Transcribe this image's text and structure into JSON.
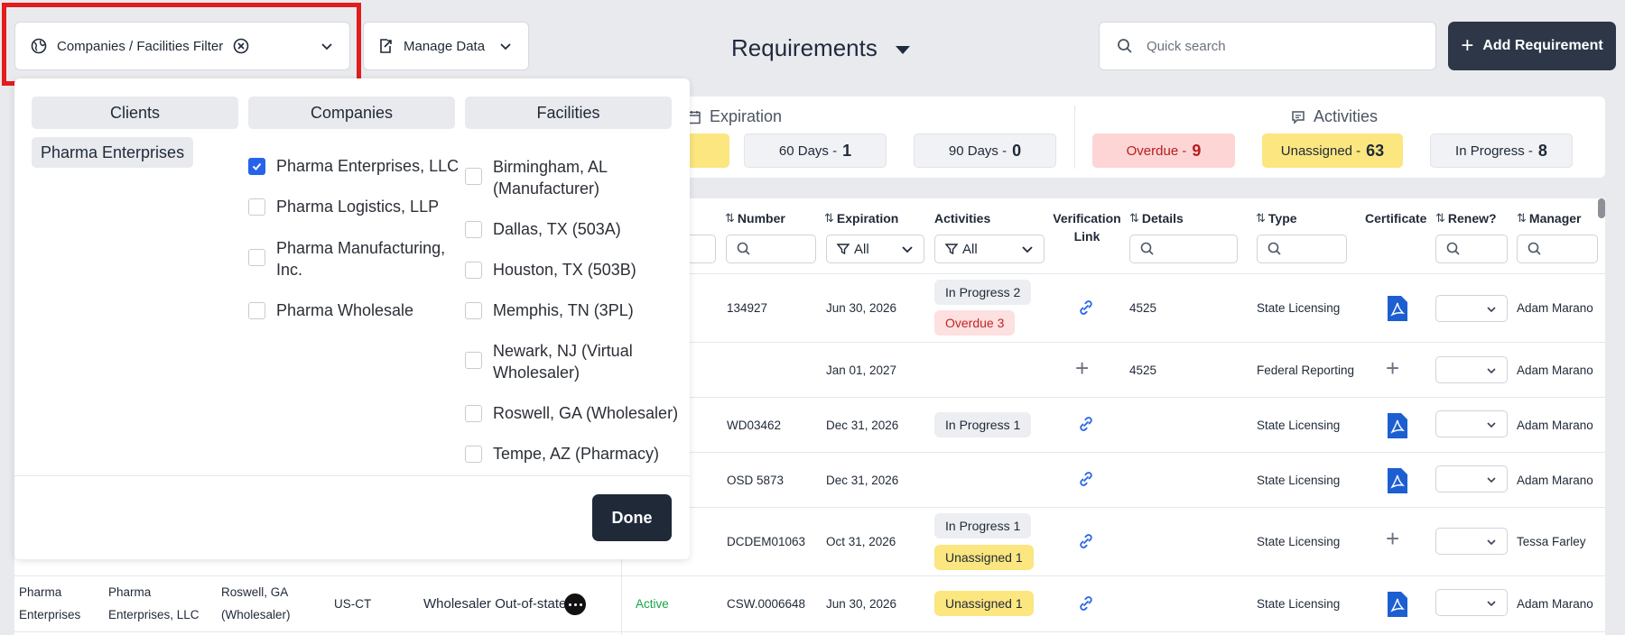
{
  "toolbar": {
    "filter_label": "Companies / Facilities Filter",
    "manage_label": "Manage Data",
    "title": "Requirements",
    "search_placeholder": "Quick search",
    "add_label": "Add Requirement"
  },
  "summary": {
    "expiration_title": "Expiration",
    "activities_title": "Activities",
    "chips": [
      {
        "label": "60 Days -",
        "count": "1"
      },
      {
        "label": "90 Days -",
        "count": "0"
      },
      {
        "label": "Overdue -",
        "count": "9"
      },
      {
        "label": "Unassigned -",
        "count": "63"
      },
      {
        "label": "In Progress -",
        "count": "8"
      }
    ]
  },
  "table": {
    "headers": {
      "number": "Number",
      "expiration": "Expiration",
      "activities": "Activities",
      "verification": "Verification",
      "verification2": "Link",
      "details": "Details",
      "type": "Type",
      "certificate": "Certificate",
      "renew": "Renew?",
      "manager": "Manager"
    },
    "filter_all": "All",
    "rows": [
      {
        "number": "134927",
        "expiration": "Jun 30, 2026",
        "details": "4525",
        "type": "State Licensing",
        "manager": "Adam Marano"
      },
      {
        "number": "",
        "expiration": "Jan 01, 2027",
        "details": "4525",
        "type": "Federal Reporting",
        "manager": "Adam Marano"
      },
      {
        "number": "WD03462",
        "expiration": "Dec 31, 2026",
        "details": "",
        "type": "State Licensing",
        "manager": "Adam Marano"
      },
      {
        "number": "OSD 5873",
        "expiration": "Dec 31, 2026",
        "details": "",
        "type": "State Licensing",
        "manager": "Adam Marano"
      },
      {
        "number": "DCDEM01063",
        "expiration": "Oct 31, 2026",
        "details": "",
        "type": "State Licensing",
        "manager": "Tessa Farley"
      },
      {
        "number": "CSW.0006648",
        "expiration": "Jun 30, 2026",
        "details": "",
        "type": "State Licensing",
        "manager": "Adam Marano"
      }
    ],
    "badges": {
      "r1a": "In Progress 2",
      "r1b": "Overdue 3",
      "r3a": "In Progress 1",
      "r5a": "In Progress 1",
      "r5b": "Unassigned 1",
      "r6a": "Unassigned 1"
    },
    "last_row": {
      "client_l1": "Pharma",
      "client_l2": "Enterprises",
      "company_l1": "Pharma",
      "company_l2": "Enterprises, LLC",
      "facility_l1": "Roswell, GA",
      "facility_l2": "(Wholesaler)",
      "state": "US-CT",
      "name": "Wholesaler Out-of-state",
      "status": "Active"
    }
  },
  "panel": {
    "clients_head": "Clients",
    "companies_head": "Companies",
    "facilities_head": "Facilities",
    "client_tag": "Pharma Enterprises",
    "companies": [
      {
        "label": "Pharma Enterprises, LLC",
        "checked": true
      },
      {
        "label": "Pharma Logistics, LLP",
        "checked": false
      },
      {
        "label": "Pharma Manufacturing, Inc.",
        "checked": false
      },
      {
        "label": "Pharma Wholesale",
        "checked": false
      }
    ],
    "facilities": [
      {
        "label": "Birmingham, AL (Manufacturer)"
      },
      {
        "label": "Dallas, TX (503A)"
      },
      {
        "label": "Houston, TX (503B)"
      },
      {
        "label": "Memphis, TN (3PL)"
      },
      {
        "label": "Newark, NJ (Virtual Wholesaler)"
      },
      {
        "label": "Roswell, GA (Wholesaler)"
      },
      {
        "label": "Tempe, AZ (Pharmacy)"
      }
    ],
    "done_label": "Done"
  }
}
